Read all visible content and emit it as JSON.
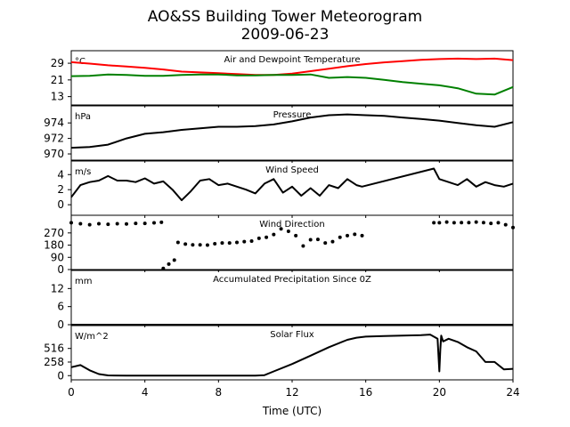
{
  "chart_data": {
    "type": "line",
    "title": "AO&SS Building Tower Meteorogram",
    "subtitle": "2009-06-23",
    "xlabel": "Time (UTC)",
    "xlim": [
      0,
      24
    ],
    "xticks": [
      "0",
      "4",
      "8",
      "12",
      "16",
      "20",
      "24"
    ],
    "grid": false,
    "panels": [
      {
        "title": "Air and Dewpoint Temperature",
        "unit": "°C",
        "ylim": [
          9,
          35
        ],
        "yticks": [
          13,
          21,
          29
        ],
        "series": [
          {
            "color": "#ff0000",
            "x": [
              0,
              1,
              2,
              3,
              4,
              5,
              6,
              7,
              8,
              9,
              10,
              11,
              12,
              13,
              14,
              15,
              16,
              17,
              18,
              19,
              20,
              21,
              22,
              23,
              24
            ],
            "y": [
              29.5,
              28.8,
              28.0,
              27.4,
              26.8,
              26.0,
              25.0,
              24.6,
              24.2,
              23.8,
              23.4,
              23.4,
              24.0,
              25.2,
              26.4,
              27.6,
              28.6,
              29.4,
              30.0,
              30.6,
              31.0,
              31.2,
              31.0,
              31.2,
              30.5
            ]
          },
          {
            "color": "#008000",
            "x": [
              0,
              1,
              2,
              3,
              4,
              5,
              6,
              7,
              8,
              9,
              10,
              11,
              12,
              13,
              14,
              15,
              16,
              17,
              18,
              19,
              20,
              21,
              22,
              23,
              24
            ],
            "y": [
              22.8,
              23.0,
              23.6,
              23.4,
              23.0,
              23.0,
              23.4,
              23.6,
              23.6,
              23.2,
              23.2,
              23.4,
              23.4,
              23.6,
              22.0,
              22.4,
              22.0,
              21.0,
              20.0,
              19.2,
              18.4,
              17.0,
              14.4,
              14.0,
              17.6
            ]
          }
        ]
      },
      {
        "title": "Pressure",
        "unit": "hPa",
        "ylim": [
          969.2,
          976.2
        ],
        "yticks": [
          970,
          972,
          974
        ],
        "series": [
          {
            "color": "#000000",
            "x": [
              0,
              1,
              2,
              3,
              4,
              5,
              6,
              7,
              8,
              9,
              10,
              11,
              12,
              13,
              14,
              15,
              16,
              17,
              18,
              19,
              20,
              21,
              22,
              23,
              24
            ],
            "y": [
              970.8,
              970.9,
              971.2,
              972.0,
              972.6,
              972.8,
              973.1,
              973.3,
              973.5,
              973.5,
              973.6,
              973.8,
              974.2,
              974.7,
              975.0,
              975.1,
              975.0,
              974.9,
              974.7,
              974.5,
              974.3,
              974.0,
              973.7,
              973.5,
              974.1
            ]
          }
        ]
      },
      {
        "title": "Wind Speed",
        "unit": "m/s",
        "ylim": [
          -1.4,
          5.8
        ],
        "yticks": [
          0,
          2,
          4
        ],
        "series": [
          {
            "color": "#000000",
            "x": [
              0,
              0.5,
              1,
              1.5,
              2,
              2.5,
              3,
              3.5,
              4,
              4.5,
              5,
              5.5,
              6,
              6.5,
              7,
              7.5,
              8,
              8.5,
              9,
              9.5,
              10,
              10.5,
              11,
              11.5,
              12,
              12.5,
              13,
              13.5,
              14,
              14.5,
              15,
              15.5,
              15.8,
              19.7,
              20,
              20.5,
              21,
              21.5,
              22,
              22.5,
              23,
              23.5,
              24
            ],
            "y": [
              1.0,
              2.6,
              3.0,
              3.2,
              3.8,
              3.2,
              3.2,
              3.0,
              3.5,
              2.8,
              3.1,
              2.0,
              0.6,
              1.8,
              3.2,
              3.4,
              2.6,
              2.8,
              2.4,
              2.0,
              1.5,
              2.8,
              3.4,
              1.6,
              2.4,
              1.2,
              2.2,
              1.2,
              2.6,
              2.2,
              3.4,
              2.6,
              2.4,
              4.8,
              3.4,
              3.0,
              2.6,
              3.4,
              2.4,
              3.0,
              2.6,
              2.4,
              2.8
            ]
          }
        ]
      },
      {
        "title": "Wind Direction",
        "unit": "",
        "ylim": [
          0,
          400
        ],
        "yticks": [
          0,
          90,
          180,
          270
        ],
        "series": [
          {
            "color": "#000000",
            "style": "dots",
            "x": [
              0,
              0.5,
              1,
              1.5,
              2,
              2.5,
              3,
              3.5,
              4,
              4.5,
              4.9,
              5.0,
              5.3,
              5.6,
              5.8,
              6.2,
              6.6,
              7.0,
              7.4,
              7.8,
              8.2,
              8.6,
              9.0,
              9.4,
              9.8,
              10.2,
              10.6,
              11.0,
              11.4,
              11.8,
              12.2,
              12.6,
              13.0,
              13.4,
              13.8,
              14.2,
              14.6,
              15.0,
              15.4,
              15.8,
              19.7,
              20.0,
              20.4,
              20.8,
              21.2,
              21.6,
              22.0,
              22.4,
              22.8,
              23.2,
              23.6,
              24.0
            ],
            "y": [
              345,
              338,
              330,
              338,
              334,
              338,
              336,
              340,
              340,
              344,
              348,
              8,
              40,
              70,
              200,
              188,
              182,
              182,
              180,
              190,
              196,
              196,
              200,
              206,
              210,
              230,
              238,
              258,
              300,
              282,
              250,
              174,
              220,
              222,
              196,
              206,
              238,
              250,
              260,
              250,
              345,
              345,
              350,
              345,
              346,
              346,
              350,
              346,
              340,
              345,
              330,
              310
            ]
          }
        ]
      },
      {
        "title": "Accumulated Precipitation Since 0Z",
        "unit": "mm",
        "ylim": [
          0,
          18
        ],
        "yticks": [
          0,
          6,
          12
        ],
        "series": [
          {
            "color": "#000000",
            "x": [
              0,
              24
            ],
            "y": [
              0,
              0
            ]
          }
        ]
      },
      {
        "title": "Solar Flux",
        "unit": "W/m^2",
        "ylim": [
          -80,
          950
        ],
        "yticks": [
          0,
          258,
          516
        ],
        "series": [
          {
            "color": "#000000",
            "x": [
              0,
              0.5,
              1,
              1.5,
              2,
              3,
              4,
              5,
              6,
              7,
              8,
              9,
              10,
              10.5,
              11,
              12,
              13,
              14,
              15,
              15.5,
              16,
              17,
              18,
              19,
              19.5,
              19.9,
              20.0,
              20.05,
              20.1,
              20.2,
              20.5,
              21,
              21.5,
              22,
              22.5,
              23,
              23.5,
              24
            ],
            "y": [
              160,
              200,
              100,
              30,
              5,
              0,
              0,
              0,
              0,
              0,
              0,
              0,
              0,
              10,
              80,
              220,
              380,
              540,
              680,
              720,
              740,
              750,
              760,
              770,
              780,
              700,
              80,
              500,
              760,
              650,
              700,
              640,
              540,
              460,
              260,
              260,
              120,
              130
            ]
          }
        ]
      }
    ]
  }
}
